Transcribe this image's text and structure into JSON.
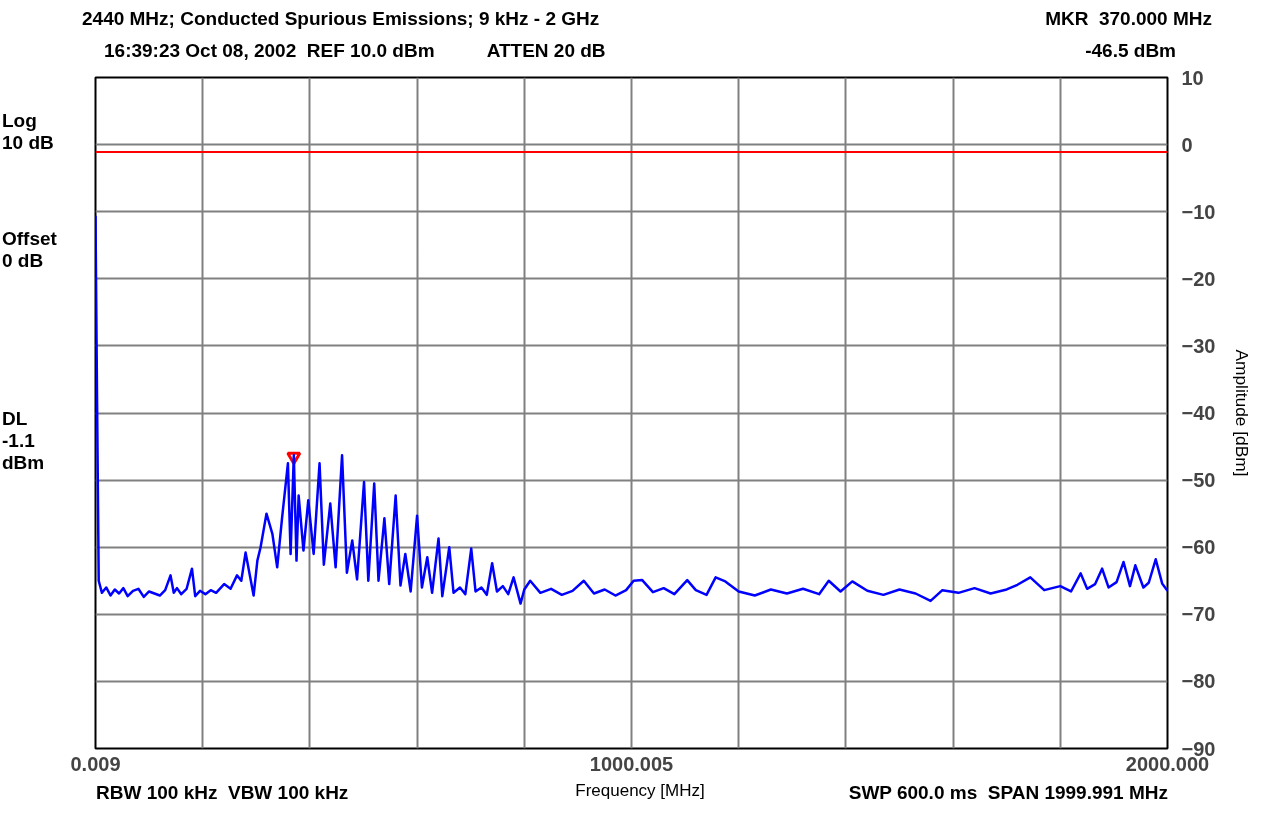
{
  "chart_data": {
    "type": "line",
    "title": "2440 MHz; Conducted Spurious Emissions; 9 kHz - 2 GHz",
    "subtitle": "16:39:23 Oct 08, 2002   REF 10.0 dBm          ATTEN 20 dB",
    "xlabel": "Frequency [MHz]",
    "ylabel": "Amplitude [dBm]",
    "xlim": [
      0.009,
      2000
    ],
    "ylim": [
      -90,
      10
    ],
    "xticks": [
      {
        "value": 0.009,
        "label": "0.009"
      },
      {
        "value": 200,
        "label": null
      },
      {
        "value": 400,
        "label": null
      },
      {
        "value": 600,
        "label": null
      },
      {
        "value": 800,
        "label": null
      },
      {
        "value": 1000.005,
        "label": "1000.005"
      },
      {
        "value": 1200,
        "label": null
      },
      {
        "value": 1400,
        "label": null
      },
      {
        "value": 1600,
        "label": null
      },
      {
        "value": 1800,
        "label": null
      },
      {
        "value": 2000,
        "label": "2000.000"
      }
    ],
    "yticks": [
      -90,
      -80,
      -70,
      -60,
      -50,
      -40,
      -30,
      -20,
      -10,
      0,
      10
    ],
    "grid": true,
    "marker": "none",
    "line_style": "solid",
    "legend": false,
    "ref_lines": [
      {
        "axis": "y",
        "value": -1.1,
        "color": "#ff0000"
      }
    ],
    "annotations": [
      "MKR  370.000 MHz",
      "-46.5 dBm",
      "Log 10 dB",
      "Offset 0 dB",
      "DL -1.1 dBm",
      "RBW 100 kHz  VBW 100 kHz",
      "SWP 600.0 ms  SPAN 1999.991 MHz"
    ],
    "series": [
      {
        "type": "scatter",
        "marker": "triangle",
        "color": "#ff0000",
        "x": [
          370
        ],
        "values": [
          -46.5
        ]
      },
      {
        "color": "#0000ff",
        "x": [
          0.009,
          3,
          6,
          12,
          20,
          28,
          36,
          44,
          52,
          60,
          70,
          80,
          90,
          100,
          110,
          120,
          130,
          140,
          146,
          152,
          160,
          170,
          180,
          186,
          195,
          205,
          215,
          225,
          240,
          252,
          264,
          272,
          280,
          295,
          302,
          308,
          319,
          330,
          339,
          348,
          359,
          364,
          370,
          375,
          379,
          388,
          397,
          407,
          418,
          426,
          438,
          448,
          460,
          469,
          479,
          488,
          501,
          509,
          520,
          528,
          539,
          548,
          560,
          569,
          578,
          588,
          600,
          609,
          619,
          628,
          640,
          647,
          660,
          668,
          680,
          690,
          701,
          709,
          720,
          730,
          740,
          749,
          760,
          770,
          780,
          793,
          800,
          811,
          830,
          850,
          870,
          890,
          911,
          930,
          950,
          970,
          990,
          1004,
          1020,
          1040,
          1060,
          1080,
          1104,
          1120,
          1140,
          1157,
          1175,
          1200,
          1230,
          1260,
          1290,
          1320,
          1350,
          1368,
          1390,
          1412,
          1440,
          1470,
          1500,
          1530,
          1558,
          1580,
          1610,
          1640,
          1670,
          1700,
          1720,
          1744,
          1770,
          1800,
          1820,
          1838,
          1850,
          1865,
          1878,
          1890,
          1905,
          1918,
          1930,
          1940,
          1955,
          1965,
          1978,
          1990,
          2000
        ],
        "values": [
          -10.6,
          -38.7,
          -65,
          -66.8,
          -66,
          -67.2,
          -66.3,
          -66.9,
          -66.1,
          -67.3,
          -66.5,
          -66.2,
          -67.4,
          -66.6,
          -66.9,
          -67.2,
          -66.4,
          -64.2,
          -66.8,
          -66.1,
          -67,
          -66.2,
          -63.2,
          -67.3,
          -66.5,
          -67,
          -66.4,
          -66.8,
          -65.5,
          -66.2,
          -64.2,
          -65,
          -60.8,
          -67.2,
          -62,
          -60,
          -55,
          -58,
          -63,
          -55.7,
          -47.5,
          -61,
          -46.3,
          -62,
          -52.3,
          -60.5,
          -53,
          -61,
          -47.5,
          -62.6,
          -53.5,
          -63,
          -46.3,
          -63.8,
          -59,
          -64.8,
          -50.3,
          -65,
          -50.5,
          -65,
          -55.7,
          -65.5,
          -52.3,
          -65.7,
          -61,
          -66.6,
          -55.3,
          -66,
          -61.5,
          -66.8,
          -58.7,
          -67.3,
          -60,
          -66.8,
          -66,
          -67,
          -60.2,
          -66.6,
          -66,
          -67.1,
          -62.4,
          -66.6,
          -65.8,
          -67,
          -64.5,
          -68.4,
          -66.3,
          -65,
          -66.8,
          -66.2,
          -67.1,
          -66.5,
          -65,
          -66.9,
          -66.3,
          -67.2,
          -66.4,
          -65,
          -64.9,
          -66.7,
          -66.1,
          -67,
          -64.9,
          -66.4,
          -67.1,
          -64.5,
          -65.1,
          -66.6,
          -67.2,
          -66.3,
          -66.9,
          -66.2,
          -67,
          -65,
          -66.6,
          -65.1,
          -66.5,
          -67.1,
          -66.3,
          -66.9,
          -68,
          -66.4,
          -66.8,
          -66.1,
          -66.9,
          -66.3,
          -65.6,
          -64.5,
          -66.4,
          -65.8,
          -66.6,
          -63.9,
          -66.2,
          -65.5,
          -63.2,
          -66,
          -65.2,
          -62.2,
          -65.8,
          -62.7,
          -66,
          -65.3,
          -61.8,
          -65.4,
          -66.5
        ]
      }
    ]
  }
}
